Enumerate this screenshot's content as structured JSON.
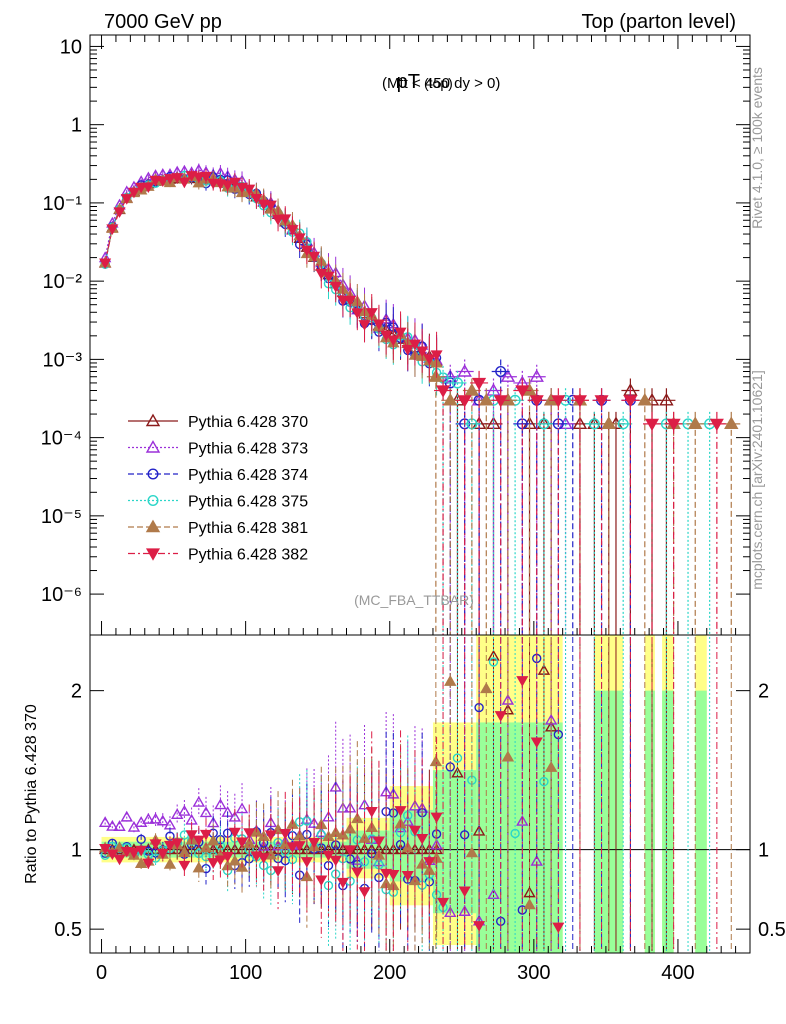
{
  "header": {
    "energy_label": "7000 GeV pp",
    "process_label": "Top (parton level)"
  },
  "side_labels": {
    "rivet": "Rivet 4.1.0, ≥ 100k events",
    "mcplots": "mcplots.cern.ch [arXiv:2401.10621]"
  },
  "chart_data": [
    {
      "type": "line",
      "panel": "main",
      "title_main": "pT",
      "title_sub": "(top)",
      "title_cut": "(Mtt < 450 dy > 0)",
      "watermark": "(MC_FBA_TTBAR)",
      "yscale": "log",
      "xlim": [
        -8,
        450
      ],
      "ylim": [
        3e-07,
        14
      ],
      "ytick_labels": [
        "10",
        "1",
        "10⁻¹",
        "10⁻²",
        "10⁻³",
        "10⁻⁴",
        "10⁻⁵",
        "10⁻⁶"
      ],
      "ytick_values": [
        10,
        1,
        0.1,
        0.01,
        0.001,
        0.0001,
        1e-05,
        1e-06
      ],
      "legend_position": "bottom-left",
      "reference_x": [
        2.5,
        7.5,
        12.5,
        17.5,
        22.5,
        27.5,
        32.5,
        37.5,
        42.5,
        47.5,
        52.5,
        57.5,
        62.5,
        67.5,
        72.5,
        77.5,
        82.5,
        87.5,
        92.5,
        97.5,
        102.5,
        107.5,
        112.5,
        117.5,
        122.5,
        127.5,
        132.5,
        137.5,
        142.5,
        147.5,
        152.5,
        157.5,
        162.5,
        167.5,
        172.5,
        177.5,
        182.5,
        187.5,
        192.5,
        197.5,
        202.5,
        207.5,
        212.5,
        217.5,
        222.5,
        227.5,
        232.5
      ],
      "reference_y": [
        0.017,
        0.048,
        0.082,
        0.115,
        0.14,
        0.16,
        0.175,
        0.188,
        0.196,
        0.2,
        0.203,
        0.205,
        0.205,
        0.203,
        0.2,
        0.195,
        0.188,
        0.178,
        0.166,
        0.152,
        0.136,
        0.119,
        0.102,
        0.086,
        0.071,
        0.057,
        0.045,
        0.035,
        0.027,
        0.02,
        0.0155,
        0.012,
        0.0092,
        0.0072,
        0.0057,
        0.0046,
        0.0038,
        0.0032,
        0.0027,
        0.0024,
        0.0021,
        0.0018,
        0.0016,
        0.0014,
        0.0012,
        0.0011,
        0.00095
      ],
      "series": [
        {
          "name": "Pythia 6.428 370",
          "color": "#8b1a1a",
          "marker": "triangle-open",
          "dash": "solid",
          "seed": 1,
          "bias": 1.0
        },
        {
          "name": "Pythia 6.428 373",
          "color": "#9b30d9",
          "marker": "triangle-open",
          "dash": "dotted",
          "seed": 2,
          "bias": 1.18
        },
        {
          "name": "Pythia 6.428 374",
          "color": "#2323c8",
          "marker": "circle-open",
          "dash": "dashed",
          "seed": 3,
          "bias": 1.0
        },
        {
          "name": "Pythia 6.428 375",
          "color": "#2bd6c8",
          "marker": "circle-open",
          "dash": "dotted",
          "seed": 4,
          "bias": 1.0
        },
        {
          "name": "Pythia 6.428 381",
          "color": "#b07a4a",
          "marker": "triangle-filled",
          "dash": "dashed",
          "seed": 5,
          "bias": 0.98
        },
        {
          "name": "Pythia 6.428 382",
          "color": "#dc1e46",
          "marker": "triangle-down-filled",
          "dash": "dashdot",
          "seed": 6,
          "bias": 0.99
        }
      ],
      "tail_points": [
        {
          "series": 0,
          "x": [
            247,
            262,
            272,
            282,
            297,
            307,
            312,
            332,
            342,
            352,
            357,
            367,
            382,
            392
          ],
          "y": [
            0.0003,
            0.00015,
            0.00015,
            0.0003,
            0.00015,
            0.00015,
            0.0003,
            0.00015,
            0.00015,
            0.00015,
            0.00015,
            0.0004,
            0.0003,
            0.0003
          ]
        },
        {
          "series": 1,
          "x": [
            242,
            252,
            262,
            272,
            282,
            292,
            302,
            312,
            322
          ],
          "y": [
            0.0006,
            0.0007,
            0.0003,
            0.0004,
            0.0006,
            0.0005,
            0.0006,
            0.0003,
            0.00015
          ]
        },
        {
          "series": 2,
          "x": [
            242,
            252,
            262,
            277,
            292,
            302,
            317,
            327,
            347,
            367
          ],
          "y": [
            0.0005,
            0.00015,
            0.0003,
            0.0007,
            0.00015,
            0.0003,
            0.00015,
            0.0003,
            0.0003,
            0.0003
          ]
        },
        {
          "series": 3,
          "x": [
            237,
            247,
            257,
            272,
            287,
            307,
            322,
            342,
            362,
            392,
            407,
            422
          ],
          "y": [
            0.00058,
            0.0005,
            0.00015,
            0.0003,
            0.0003,
            0.00015,
            0.0003,
            0.00015,
            0.00015,
            0.00015,
            0.00015,
            0.00015
          ]
        },
        {
          "series": 4,
          "x": [
            232,
            242,
            257,
            267,
            282,
            297,
            312,
            332,
            352,
            377,
            397,
            412,
            437
          ],
          "y": [
            0.0006,
            0.0003,
            0.0004,
            0.0003,
            0.0003,
            0.0004,
            0.0003,
            0.0003,
            0.00015,
            0.0003,
            0.00015,
            0.00015,
            0.00015
          ]
        },
        {
          "series": 5,
          "x": [
            237,
            252,
            262,
            277,
            292,
            302,
            317,
            332,
            347,
            367,
            382,
            397,
            427
          ],
          "y": [
            0.0004,
            0.0003,
            0.0005,
            0.0003,
            0.0004,
            0.0003,
            0.0003,
            0.0003,
            0.0003,
            0.0003,
            0.00015,
            0.00015,
            0.00015
          ]
        }
      ]
    },
    {
      "type": "line",
      "panel": "ratio",
      "ylabel": "Ratio to Pythia 6.428 370",
      "ylim": [
        0.35,
        2.35
      ],
      "xlim": [
        -8,
        450
      ],
      "xtick_values": [
        0,
        100,
        200,
        300,
        400
      ],
      "xtick_labels": [
        "0",
        "100",
        "200",
        "300",
        "400"
      ],
      "ytick_values": [
        0.5,
        1,
        2
      ],
      "ytick_labels": [
        "0.5",
        "1",
        "2"
      ],
      "reference_line": 1,
      "band_inner_color": "#99ff99",
      "band_outer_color": "#ffff88",
      "bands": [
        {
          "x0": 0,
          "x1": 170,
          "lo": 0.95,
          "hi": 1.05,
          "lo2": 0.92,
          "hi2": 1.08
        },
        {
          "x0": 170,
          "x1": 200,
          "lo": 0.88,
          "hi": 1.12,
          "lo2": 0.82,
          "hi2": 1.2
        },
        {
          "x0": 200,
          "x1": 230,
          "lo": 0.8,
          "hi": 1.25,
          "lo2": 0.65,
          "hi2": 1.4
        },
        {
          "x0": 230,
          "x1": 260,
          "lo": 0.6,
          "hi": 1.5,
          "lo2": 0.4,
          "hi2": 1.8
        },
        {
          "x0": 260,
          "x1": 320,
          "lo": 0.35,
          "hi": 1.8,
          "lo2": 0.35,
          "hi2": 2.35
        },
        {
          "x0": 342,
          "x1": 362,
          "lo": 0.35,
          "hi": 2.0,
          "lo2": 0.35,
          "hi2": 2.35
        },
        {
          "x0": 377,
          "x1": 384,
          "lo": 0.35,
          "hi": 2.0,
          "lo2": 0.35,
          "hi2": 2.35
        },
        {
          "x0": 389,
          "x1": 397,
          "lo": 0.35,
          "hi": 2.0,
          "lo2": 0.35,
          "hi2": 2.35
        },
        {
          "x0": 412,
          "x1": 420,
          "lo": 0.35,
          "hi": 2.0,
          "lo2": 0.35,
          "hi2": 2.35
        }
      ]
    }
  ]
}
